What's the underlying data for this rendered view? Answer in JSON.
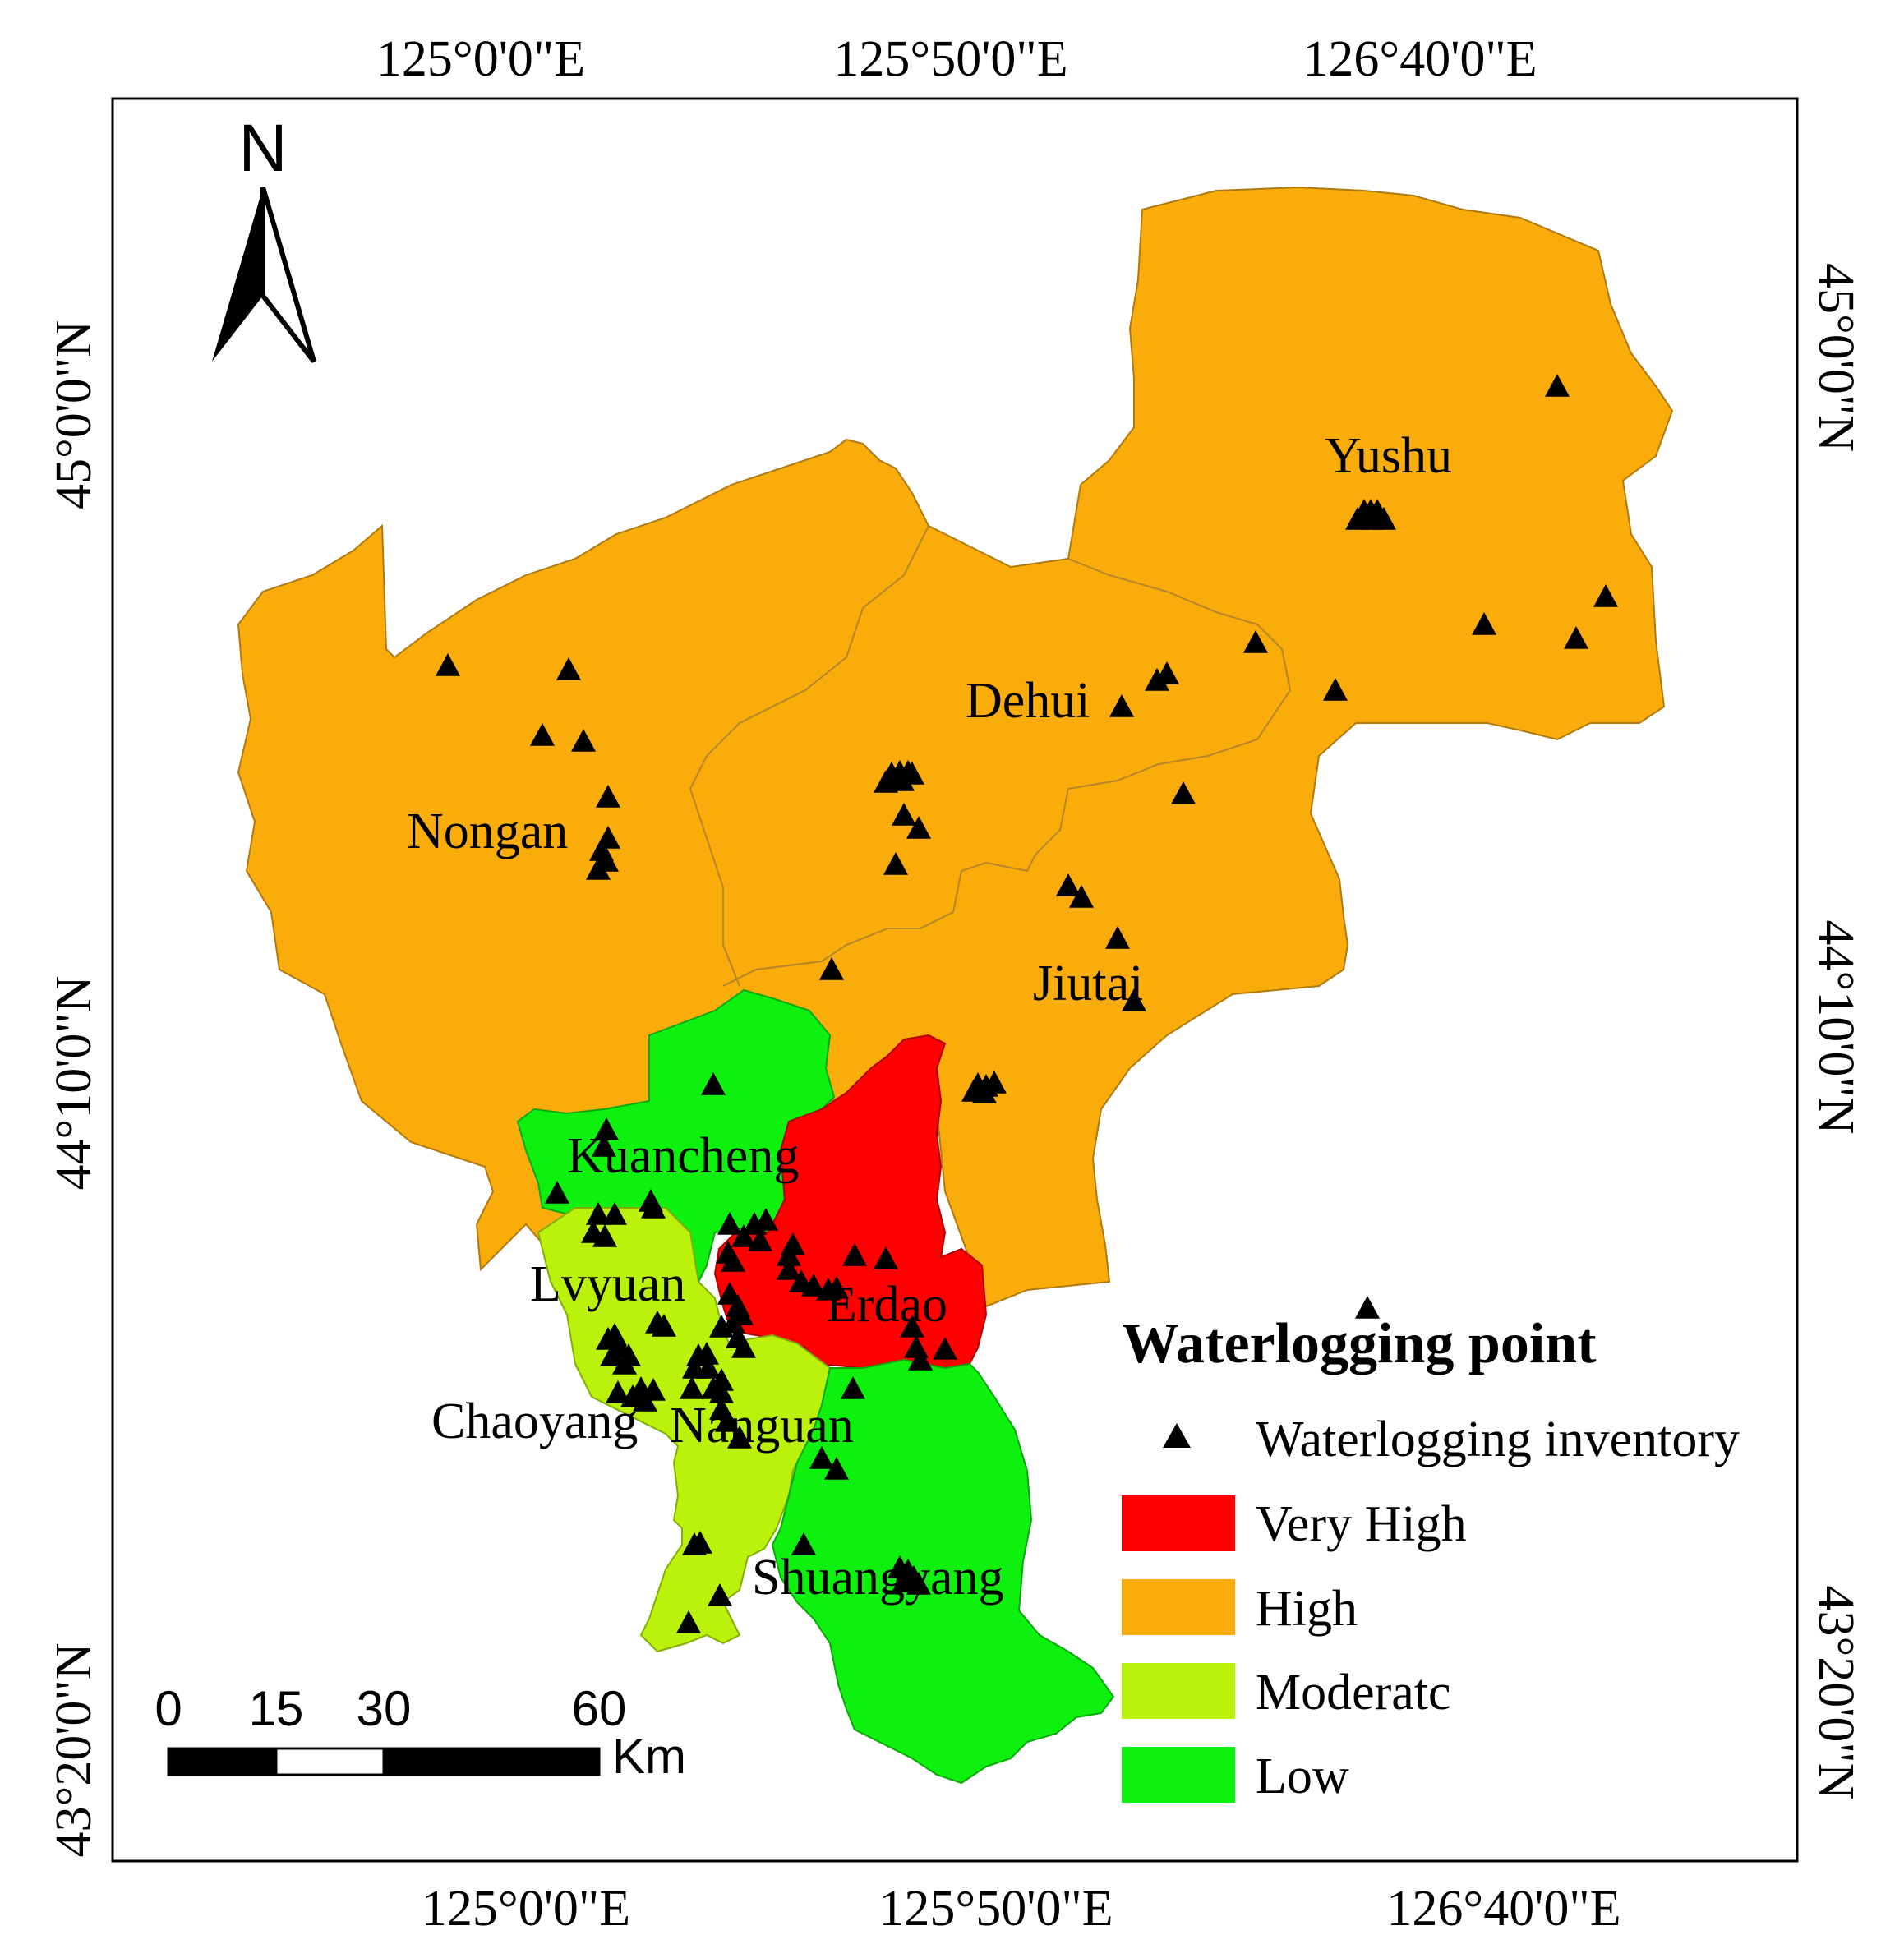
{
  "map": {
    "coords": {
      "top": [
        "125°0'0\"E",
        "125°50'0\"E",
        "126°40'0\"E"
      ],
      "bottom": [
        "125°0'0\"E",
        "125°50'0\"E",
        "126°40'0\"E"
      ],
      "left": [
        "45°0'0\"N",
        "44°10'0\"N",
        "43°20'0\"N"
      ],
      "right": [
        "45°0'0\"N",
        "44°10'0\"N",
        "43°20'0\"N"
      ]
    },
    "districts": {
      "yushu": "Yushu",
      "dehui": "Dehui",
      "nongan": "Nongan",
      "jiutai": "Jiutai",
      "kuancheng": "Kuancheng",
      "lvyuan": "Lvyuan",
      "erdao": "Erdao",
      "chaoyang": "Chaoyang",
      "nanguan": "Nanguan",
      "shuangyang": "Shuangyang"
    },
    "district_risk": {
      "Yushu": "High",
      "Dehui": "High",
      "Nongan": "High",
      "Jiutai": "High",
      "Erdao": "Very High",
      "Kuancheng": "Low",
      "Shuangyang": "Low",
      "Lvyuan": "Moderatc",
      "Chaoyang": "Moderatc",
      "Nanguan": "Moderatc"
    },
    "north": {
      "letter": "N"
    },
    "scale": {
      "ticks": [
        "0",
        "15",
        "30",
        "60"
      ],
      "unit": "Km"
    },
    "legend": {
      "title": "Waterlogging point",
      "inventory_label": "Waterlogging inventory",
      "classes": [
        {
          "label": "Very High",
          "color": "#ff0000"
        },
        {
          "label": "High",
          "color": "#f9ac0a"
        },
        {
          "label": "Moderatc",
          "color": "#baf20c"
        },
        {
          "label": "Low",
          "color": "#0ef00e"
        }
      ]
    }
  }
}
